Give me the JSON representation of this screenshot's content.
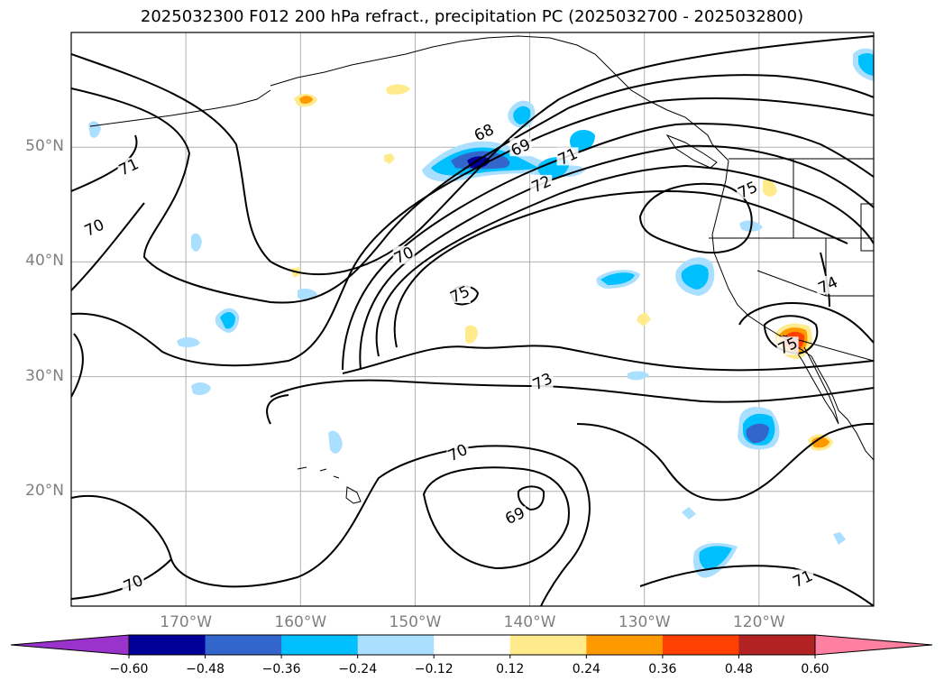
{
  "title": "2025032300 F012 200 hPa refract., precipitation PC (2025032700 - 2025032800)",
  "map": {
    "lon_range": [
      -180,
      -110
    ],
    "lat_range": [
      10,
      60
    ],
    "lat_labels": [
      {
        "lat": 50,
        "text": "50°N"
      },
      {
        "lat": 40,
        "text": "40°N"
      },
      {
        "lat": 30,
        "text": "30°N"
      },
      {
        "lat": 20,
        "text": "20°N"
      }
    ],
    "lon_labels": [
      {
        "lon": -170,
        "text": "170°W"
      },
      {
        "lon": -160,
        "text": "160°W"
      },
      {
        "lon": -150,
        "text": "150°W"
      },
      {
        "lon": -140,
        "text": "140°W"
      },
      {
        "lon": -130,
        "text": "130°W"
      },
      {
        "lon": -120,
        "text": "120°W"
      }
    ],
    "contour_labels": [
      {
        "text": "71",
        "lon": -175,
        "lat": 48.3
      },
      {
        "text": "70",
        "lon": -178,
        "lat": 43.0
      },
      {
        "text": "68",
        "lon": -144,
        "lat": 51.3
      },
      {
        "text": "69",
        "lon": -140.8,
        "lat": 50.0
      },
      {
        "text": "71",
        "lon": -136.7,
        "lat": 49.2
      },
      {
        "text": "72",
        "lon": -139.0,
        "lat": 46.8
      },
      {
        "text": "70",
        "lon": -151.0,
        "lat": 40.6
      },
      {
        "text": "75",
        "lon": -146.1,
        "lat": 37.2
      },
      {
        "text": "73",
        "lon": -138.9,
        "lat": 29.6
      },
      {
        "text": "70",
        "lon": -146.3,
        "lat": 23.4
      },
      {
        "text": "69",
        "lon": -141.3,
        "lat": 17.9
      },
      {
        "text": "70",
        "lon": -174.6,
        "lat": 12.0
      },
      {
        "text": "71",
        "lon": -116.2,
        "lat": 12.4
      },
      {
        "text": "75",
        "lon": -121.0,
        "lat": 46.3
      },
      {
        "text": "74",
        "lon": -114.0,
        "lat": 38.0
      },
      {
        "text": "75",
        "lon": -117.5,
        "lat": 32.7
      }
    ]
  },
  "colorbar": {
    "colors": [
      "#9933cc",
      "#000099",
      "#3366cc",
      "#00bfff",
      "#aadfff",
      "#ffffff",
      "#ffea8c",
      "#ff9900",
      "#ff4000",
      "#b22222",
      "#ff80a0"
    ],
    "tick_labels": [
      "−0.60",
      "−0.48",
      "−0.36",
      "−0.24",
      "−0.12",
      "0.12",
      "0.24",
      "0.36",
      "0.48",
      "0.60"
    ]
  }
}
